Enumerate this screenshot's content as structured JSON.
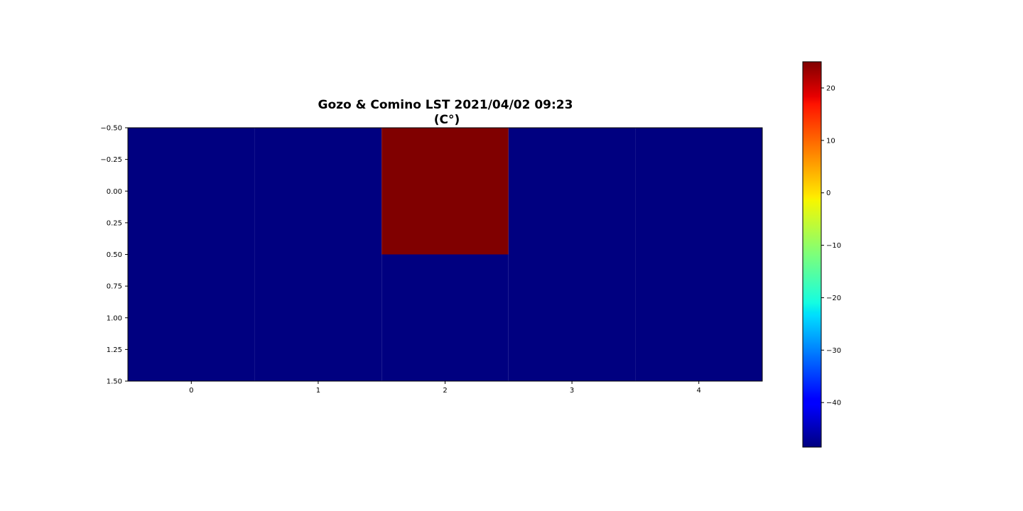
{
  "chart_data": {
    "type": "heatmap",
    "title_lines": [
      "Gozo & Comino LST 2021/04/02 09:23",
      "(C°)"
    ],
    "colormap": "jet",
    "values": [
      [
        -48.5,
        -48.5,
        25,
        -48.5,
        -48.5
      ],
      [
        -48.5,
        -48.5,
        -48.5,
        -48.5,
        -48.5
      ]
    ],
    "x_ticks": [
      0,
      1,
      2,
      3,
      4
    ],
    "x_tick_labels": [
      "0",
      "1",
      "2",
      "3",
      "4"
    ],
    "xlim": [
      -0.5,
      4.5
    ],
    "y_ticks": [
      -0.5,
      -0.25,
      0,
      0.25,
      0.5,
      0.75,
      1,
      1.25,
      1.5
    ],
    "y_tick_labels": [
      "−0.50",
      "−0.25",
      "0.00",
      "0.25",
      "0.50",
      "0.75",
      "1.00",
      "1.25",
      "1.50"
    ],
    "ylim": [
      -0.5,
      1.5
    ],
    "y_inverted": true,
    "colorbar": {
      "range": [
        -48.5,
        25
      ],
      "ticks": [
        -40,
        -30,
        -20,
        -10,
        0,
        10,
        20
      ],
      "tick_labels": [
        "−40",
        "−30",
        "−20",
        "−10",
        "0",
        "10",
        "20"
      ]
    },
    "grid": false
  }
}
